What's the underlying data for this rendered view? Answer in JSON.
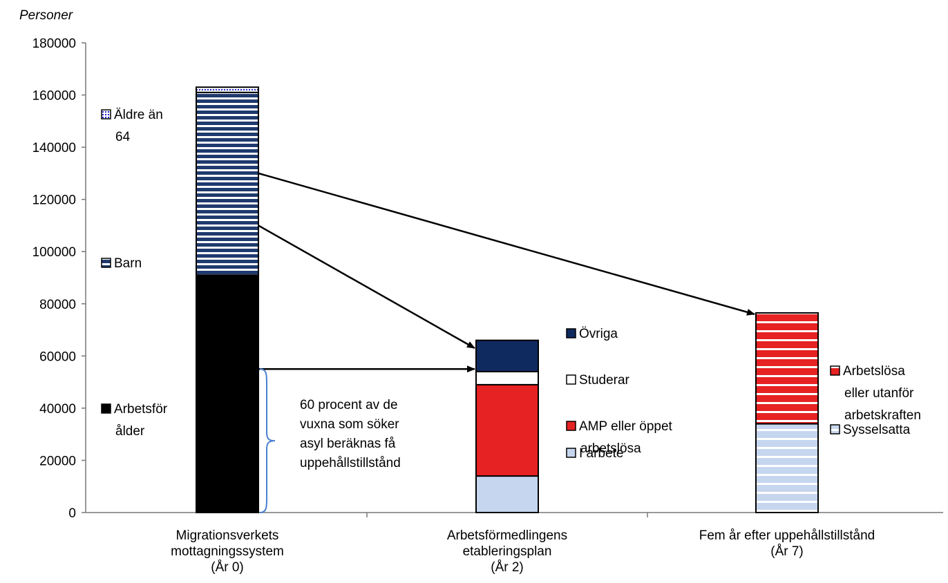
{
  "chart_data": {
    "type": "bar",
    "stacked": true,
    "ylabel": "Personer",
    "ylim": [
      0,
      180000
    ],
    "yticks": [
      "0",
      "20000",
      "40000",
      "60000",
      "80000",
      "100000",
      "120000",
      "140000",
      "160000",
      "180000"
    ],
    "grid": false,
    "categories": [
      [
        "Migrationsverkets",
        "mottagningssystem",
        "(År 0)"
      ],
      [
        "Arbetsförmedlingens",
        "etableringsplan",
        "(År 2)"
      ],
      [
        "Fem år efter uppehållstillstånd",
        "(År 7)"
      ]
    ],
    "bars": [
      {
        "segments": [
          {
            "name": [
              "Arbetsför",
              "ålder"
            ],
            "value": 91000,
            "color": "#000000",
            "pattern": "solid"
          },
          {
            "name": [
              "Barn"
            ],
            "value": 70000,
            "color": "#1f3a6e",
            "pattern": "stripes"
          },
          {
            "name": [
              "Äldre än",
              "64"
            ],
            "value": 2000,
            "color": "#1a1acc",
            "pattern": "dotted"
          }
        ]
      },
      {
        "segments": [
          {
            "name": [
              "I arbete"
            ],
            "value": 14000,
            "color": "#c6d6ee",
            "pattern": "solid"
          },
          {
            "name": [
              "AMP eller öppet",
              "arbetslösa"
            ],
            "value": 35000,
            "color": "#e62222",
            "pattern": "solid"
          },
          {
            "name": [
              "Studerar"
            ],
            "value": 5000,
            "color": "#ffffff",
            "pattern": "solid"
          },
          {
            "name": [
              "Övriga"
            ],
            "value": 12000,
            "color": "#0f2a5e",
            "pattern": "solid"
          }
        ]
      },
      {
        "segments": [
          {
            "name": [
              "Sysselsatta"
            ],
            "value": 34000,
            "color": "#c6d6ee",
            "pattern": "stripes"
          },
          {
            "name": [
              "Arbetslösa",
              "eller utanför",
              "arbetskraften"
            ],
            "value": 42500,
            "color": "#e62222",
            "pattern": "stripes"
          }
        ]
      }
    ],
    "annotation": [
      "60 procent av de",
      "vuxna som söker",
      "asyl beräknas få",
      "uppehållstillstånd"
    ],
    "arrows": [
      {
        "from_bar": 0,
        "from_value": 130000,
        "to_bar": 2,
        "to_value": 76000
      },
      {
        "from_bar": 0,
        "from_value": 110000,
        "to_bar": 1,
        "to_value": 63000
      },
      {
        "from_bar": 0,
        "from_value": 55000,
        "to_bar": 1,
        "to_value": 55000
      }
    ]
  }
}
